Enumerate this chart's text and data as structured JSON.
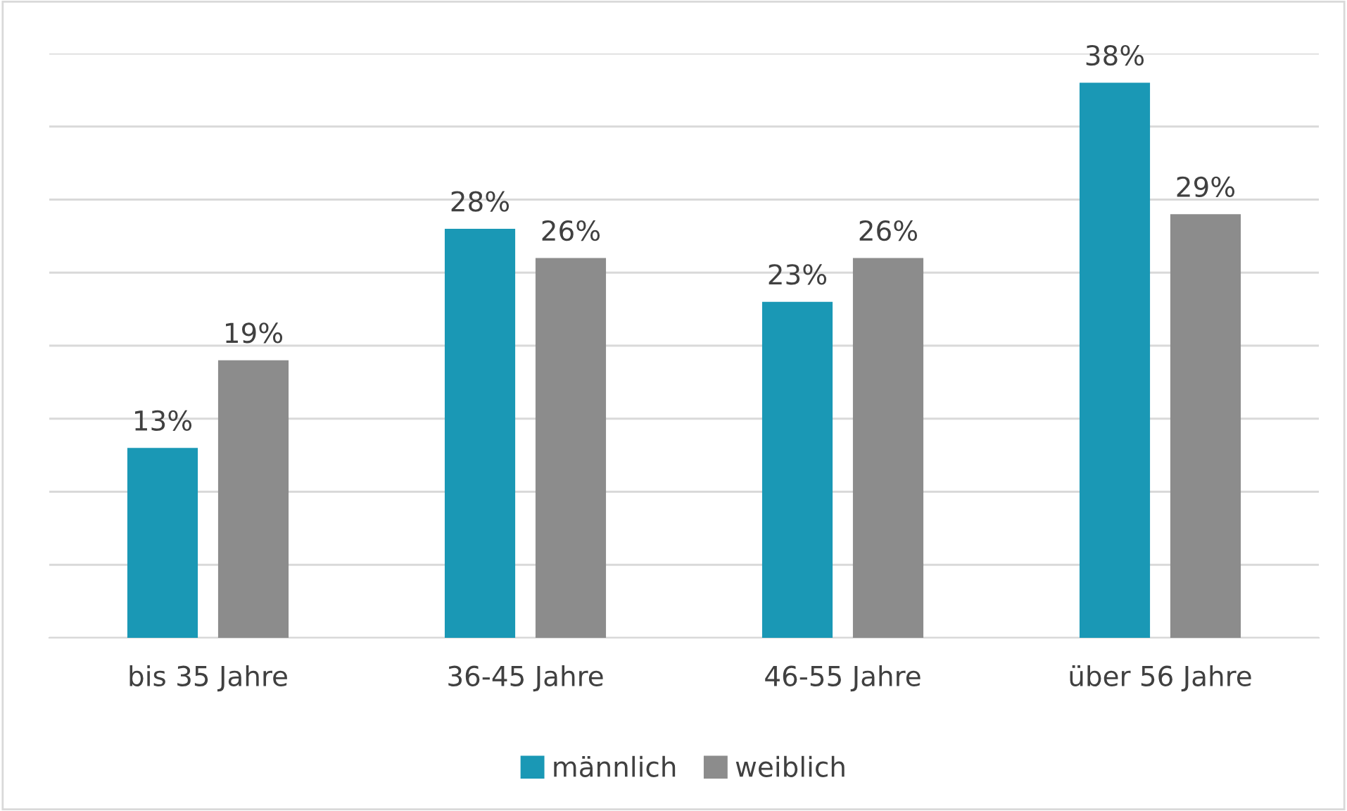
{
  "chart_data": {
    "type": "bar",
    "categories": [
      "bis 35 Jahre",
      "36-45 Jahre",
      "46-55 Jahre",
      "über 56 Jahre"
    ],
    "series": [
      {
        "name": "männlich",
        "color": "#1a98b5",
        "values": [
          13,
          28,
          23,
          38
        ],
        "value_labels": [
          "13%",
          "28%",
          "23%",
          "38%"
        ]
      },
      {
        "name": "weiblich",
        "color": "#8c8c8c",
        "values": [
          19,
          26,
          26,
          29
        ],
        "value_labels": [
          "19%",
          "26%",
          "26%",
          "29%"
        ]
      }
    ],
    "ylim": [
      0,
      40
    ],
    "yticks": [
      {
        "value": 0,
        "label": null
      },
      {
        "value": 5,
        "label": null
      },
      {
        "value": 10,
        "label": null
      },
      {
        "value": 15,
        "label": null
      },
      {
        "value": 20,
        "label": null
      },
      {
        "value": 25,
        "label": null
      },
      {
        "value": 30,
        "label": null
      },
      {
        "value": 35,
        "label": null
      },
      {
        "value": 40,
        "label": null
      }
    ],
    "grid": "y",
    "legend": "bottom",
    "tick_labels": "x"
  }
}
